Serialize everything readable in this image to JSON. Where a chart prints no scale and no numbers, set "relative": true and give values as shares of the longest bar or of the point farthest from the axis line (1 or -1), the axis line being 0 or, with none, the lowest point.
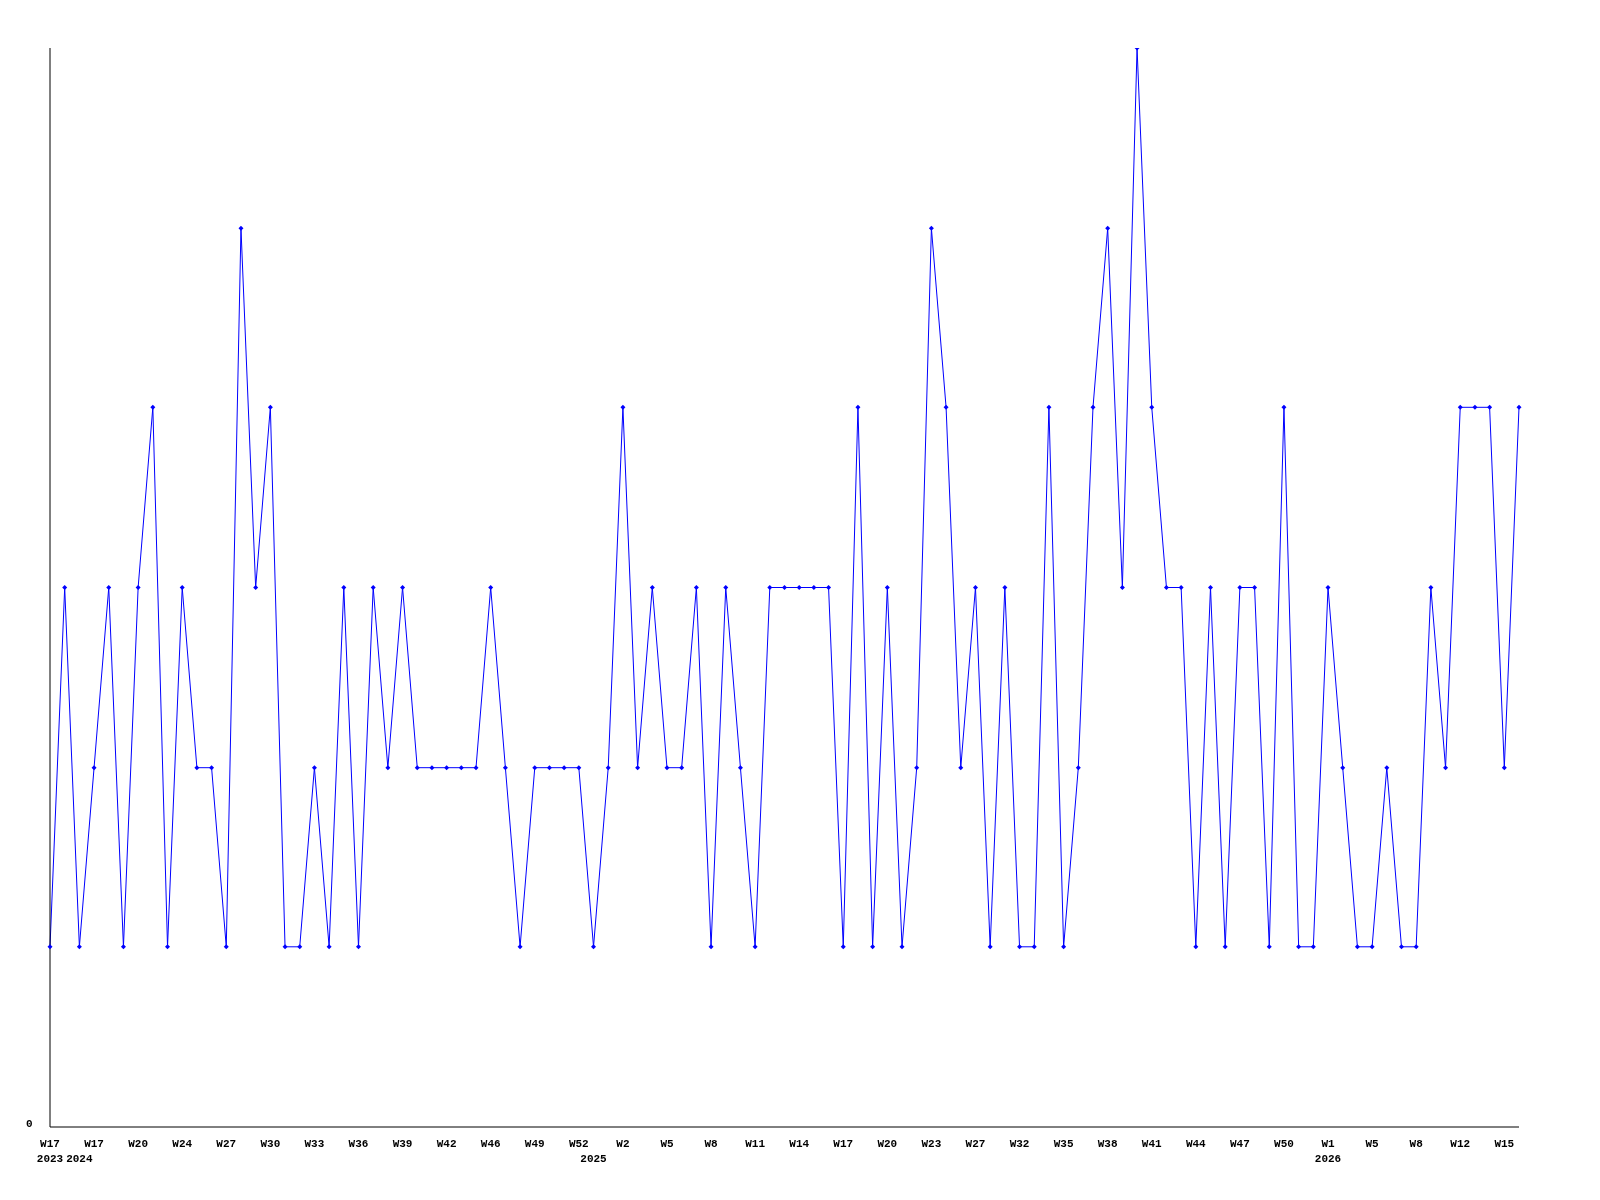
{
  "chart_data": {
    "type": "line",
    "relative": true,
    "annotations": [
      "0"
    ],
    "categories": [
      "W17\n2023",
      null,
      "\n2024",
      "W17",
      null,
      null,
      "W20",
      null,
      null,
      "W24",
      null,
      null,
      "W27",
      null,
      null,
      "W30",
      null,
      null,
      "W33",
      null,
      null,
      "W36",
      null,
      null,
      "W39",
      null,
      null,
      "W42",
      null,
      null,
      "W46",
      null,
      null,
      "W49",
      null,
      null,
      "W52",
      "\n2025",
      null,
      "W2",
      null,
      null,
      "W5",
      null,
      null,
      "W8",
      null,
      null,
      "W11",
      null,
      null,
      "W14",
      null,
      null,
      "W17",
      null,
      null,
      "W20",
      null,
      null,
      "W23",
      null,
      null,
      "W27",
      null,
      null,
      "W32",
      null,
      null,
      "W35",
      null,
      null,
      "W38",
      null,
      null,
      "W41",
      null,
      null,
      "W44",
      null,
      null,
      "W47",
      null,
      null,
      "W50",
      null,
      null,
      "W1\n2026",
      null,
      null,
      "W5",
      null,
      null,
      "W8",
      null,
      null,
      "W12",
      null,
      null,
      "W15",
      null
    ],
    "series": [
      {
        "color": "#0000ff",
        "values": [
          0.167,
          0.5,
          0.167,
          0.333,
          0.5,
          0.167,
          0.5,
          0.667,
          0.167,
          0.5,
          0.333,
          0.333,
          0.167,
          0.833,
          0.5,
          0.667,
          0.167,
          0.167,
          0.333,
          0.167,
          0.5,
          0.167,
          0.5,
          0.333,
          0.5,
          0.333,
          0.333,
          0.333,
          0.333,
          0.333,
          0.5,
          0.333,
          0.167,
          0.333,
          0.333,
          0.333,
          0.333,
          0.167,
          0.333,
          0.667,
          0.333,
          0.5,
          0.333,
          0.333,
          0.5,
          0.167,
          0.5,
          0.333,
          0.167,
          0.5,
          0.5,
          0.5,
          0.5,
          0.5,
          0.167,
          0.667,
          0.167,
          0.5,
          0.167,
          0.333,
          0.833,
          0.667,
          0.333,
          0.5,
          0.167,
          0.5,
          0.167,
          0.167,
          0.667,
          0.167,
          0.333,
          0.667,
          0.833,
          0.5,
          1,
          0.667,
          0.5,
          0.5,
          0.167,
          0.5,
          0.167,
          0.5,
          0.5,
          0.167,
          0.667,
          0.167,
          0.167,
          0.5,
          0.333,
          0.167,
          0.167,
          0.333,
          0.167,
          0.167,
          0.5,
          0.333,
          0.667,
          0.667,
          0.667,
          0.333,
          0.667
        ]
      }
    ],
    "marker": "diamond",
    "grid": false,
    "legend": false
  }
}
